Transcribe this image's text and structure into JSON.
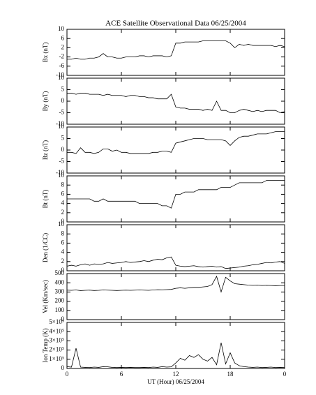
{
  "chart_data": [
    {
      "type": "line",
      "title": "ACE Satellite Observational Data   06/25/2004",
      "ylabel": "Bx (nT)",
      "color": "#000000",
      "xlim": [
        0,
        24
      ],
      "ylim": [
        -10,
        10
      ],
      "yticks": [
        -10,
        -6,
        -2,
        2,
        6,
        10
      ],
      "x": [
        0,
        0.5,
        1,
        1.5,
        2,
        2.5,
        3,
        3.5,
        4,
        4.5,
        5,
        5.5,
        6,
        6.5,
        7,
        7.5,
        8,
        8.5,
        9,
        9.5,
        10,
        10.5,
        11,
        11.5,
        12,
        12.5,
        13,
        13.5,
        14,
        14.5,
        15,
        15.5,
        16,
        16.5,
        17,
        17.5,
        18,
        18.5,
        19,
        19.5,
        20,
        20.5,
        21,
        21.5,
        22,
        22.5,
        23,
        23.5,
        24
      ],
      "values": [
        -3,
        -3,
        -2.5,
        -3,
        -3,
        -2.5,
        -2.5,
        -2,
        -0.5,
        -2,
        -2,
        -2.5,
        -2.5,
        -2,
        -2,
        -2,
        -1.5,
        -1.5,
        -2,
        -1.5,
        -1.5,
        -1.5,
        -2,
        -1.5,
        4,
        4,
        4.5,
        4.5,
        4.5,
        4.5,
        5,
        5,
        5,
        5,
        5,
        5,
        4,
        2,
        3.5,
        3,
        3.5,
        3,
        3,
        3,
        3,
        3,
        2.5,
        3,
        2.5
      ]
    },
    {
      "type": "line",
      "ylabel": "By (nT)",
      "color": "#000000",
      "xlim": [
        0,
        24
      ],
      "ylim": [
        -10,
        10
      ],
      "yticks": [
        -10,
        -5,
        0,
        5,
        10
      ],
      "x": [
        0,
        0.5,
        1,
        1.5,
        2,
        2.5,
        3,
        3.5,
        4,
        4.5,
        5,
        5.5,
        6,
        6.5,
        7,
        7.5,
        8,
        8.5,
        9,
        9.5,
        10,
        10.5,
        11,
        11.5,
        12,
        12.5,
        13,
        13.5,
        14,
        14.5,
        15,
        15.5,
        16,
        16.5,
        17,
        17.5,
        18,
        18.5,
        19,
        19.5,
        20,
        20.5,
        21,
        21.5,
        22,
        22.5,
        23,
        23.5,
        24
      ],
      "values": [
        3.5,
        3.5,
        3,
        3.5,
        3.5,
        3,
        3,
        3,
        2.5,
        3,
        2.5,
        2.5,
        2.5,
        2,
        2.5,
        2.5,
        2,
        2,
        1.5,
        1.5,
        1,
        1,
        1,
        3,
        -2.5,
        -3,
        -3,
        -3.5,
        -3.5,
        -3.5,
        -4,
        -3.5,
        -4,
        0,
        -4,
        -4,
        -5,
        -5,
        -4,
        -3.5,
        -4,
        -4.5,
        -4,
        -4.5,
        -4,
        -4,
        -4,
        -5,
        -4.5
      ]
    },
    {
      "type": "line",
      "ylabel": "Bz (nT)",
      "color": "#000000",
      "xlim": [
        0,
        24
      ],
      "ylim": [
        -10,
        10
      ],
      "yticks": [
        -10,
        -5,
        0,
        5,
        10
      ],
      "x": [
        0,
        0.5,
        1,
        1.5,
        2,
        2.5,
        3,
        3.5,
        4,
        4.5,
        5,
        5.5,
        6,
        6.5,
        7,
        7.5,
        8,
        8.5,
        9,
        9.5,
        10,
        10.5,
        11,
        11.5,
        12,
        12.5,
        13,
        13.5,
        14,
        14.5,
        15,
        15.5,
        16,
        16.5,
        17,
        17.5,
        18,
        18.5,
        19,
        19.5,
        20,
        20.5,
        21,
        21.5,
        22,
        22.5,
        23,
        23.5,
        24
      ],
      "values": [
        -1,
        -1,
        -1.5,
        1,
        -1,
        -1,
        -1.5,
        -1,
        0.5,
        0.5,
        -0.5,
        0,
        -1,
        -1,
        -1.5,
        -1.5,
        -1.5,
        -1.5,
        -1.5,
        -1,
        -1,
        -0.5,
        -0.5,
        -1,
        3,
        3.5,
        4,
        4.5,
        5,
        5,
        5,
        4.5,
        4.5,
        4.5,
        4.5,
        4,
        2,
        4,
        5.5,
        6,
        6,
        6.5,
        7,
        7,
        7,
        7.5,
        8,
        8,
        8
      ]
    },
    {
      "type": "line",
      "ylabel": "Bt (nT)",
      "color": "#000000",
      "xlim": [
        0,
        24
      ],
      "ylim": [
        0,
        10
      ],
      "yticks": [
        0,
        2,
        4,
        6,
        8,
        10
      ],
      "x": [
        0,
        0.5,
        1,
        1.5,
        2,
        2.5,
        3,
        3.5,
        4,
        4.5,
        5,
        5.5,
        6,
        6.5,
        7,
        7.5,
        8,
        8.5,
        9,
        9.5,
        10,
        10.5,
        11,
        11.5,
        12,
        12.5,
        13,
        13.5,
        14,
        14.5,
        15,
        15.5,
        16,
        16.5,
        17,
        17.5,
        18,
        18.5,
        19,
        19.5,
        20,
        20.5,
        21,
        21.5,
        22,
        22.5,
        23,
        23.5,
        24
      ],
      "values": [
        5,
        5,
        5,
        5,
        5,
        5,
        4.5,
        4.5,
        5,
        4.5,
        4.5,
        4.5,
        4.5,
        4.5,
        4.5,
        4.5,
        4,
        4,
        4,
        4,
        4,
        3.5,
        3.5,
        3,
        6,
        6,
        6.5,
        6.5,
        6.5,
        7,
        7,
        7,
        7,
        7,
        7.5,
        7.5,
        7.5,
        8,
        8.5,
        8.5,
        8.5,
        8.5,
        8.5,
        8.5,
        9,
        9,
        9,
        9,
        9
      ]
    },
    {
      "type": "line",
      "ylabel": "Den (1/CC)",
      "color": "#000000",
      "xlim": [
        0,
        24
      ],
      "ylim": [
        0,
        10
      ],
      "yticks": [
        0,
        2,
        4,
        6,
        8,
        10
      ],
      "x": [
        0,
        0.5,
        1,
        1.5,
        2,
        2.5,
        3,
        3.5,
        4,
        4.5,
        5,
        5.5,
        6,
        6.5,
        7,
        7.5,
        8,
        8.5,
        9,
        9.5,
        10,
        10.5,
        11,
        11.5,
        12,
        12.5,
        13,
        13.5,
        14,
        14.5,
        15,
        15.5,
        16,
        16.5,
        17,
        17.5,
        18,
        18.5,
        19,
        19.5,
        20,
        20.5,
        21,
        21.5,
        22,
        22.5,
        23,
        23.5,
        24
      ],
      "values": [
        1,
        1.2,
        1,
        1.3,
        1.5,
        1.2,
        1.5,
        1.4,
        1.5,
        1.8,
        1.6,
        1.7,
        1.8,
        2,
        1.8,
        1.9,
        2,
        2.2,
        2,
        2.3,
        2.5,
        2.4,
        2.8,
        3,
        1.2,
        1,
        0.9,
        1,
        1.1,
        0.9,
        0.8,
        0.9,
        1,
        0.8,
        0.9,
        0.5,
        0.6,
        0.7,
        0.8,
        1,
        1.1,
        1.3,
        1.4,
        1.6,
        1.8,
        1.7,
        1.9,
        2,
        1.6
      ]
    },
    {
      "type": "line",
      "ylabel": "Vel (Km/sec)",
      "color": "#000000",
      "xlim": [
        0,
        24
      ],
      "ylim": [
        0,
        500
      ],
      "yticks": [
        0,
        100,
        200,
        300,
        400,
        500
      ],
      "x": [
        0,
        0.5,
        1,
        1.5,
        2,
        2.5,
        3,
        3.5,
        4,
        4.5,
        5,
        5.5,
        6,
        6.5,
        7,
        7.5,
        8,
        8.5,
        9,
        9.5,
        10,
        10.5,
        11,
        11.5,
        12,
        12.5,
        13,
        13.5,
        14,
        14.5,
        15,
        15.5,
        16,
        16.5,
        17,
        17.5,
        18,
        18.5,
        19,
        19.5,
        20,
        20.5,
        21,
        21.5,
        22,
        22.5,
        23,
        23.5,
        24
      ],
      "values": [
        320,
        318,
        322,
        315,
        318,
        320,
        316,
        318,
        322,
        320,
        318,
        316,
        318,
        320,
        318,
        320,
        322,
        320,
        318,
        322,
        325,
        324,
        326,
        328,
        340,
        345,
        340,
        345,
        350,
        350,
        355,
        360,
        380,
        470,
        300,
        460,
        420,
        390,
        385,
        380,
        375,
        372,
        374,
        370,
        372,
        370,
        368,
        370,
        370
      ]
    },
    {
      "type": "line",
      "ylabel": "Ion Temp (K)",
      "xlabel": "UT (Hour)  06/25/2004",
      "color": "#000000",
      "xlim": [
        0,
        24
      ],
      "xticks": [
        0,
        6,
        12,
        18,
        {
          "value": 24,
          "label": "0"
        }
      ],
      "ylim": [
        0,
        500000
      ],
      "yticks": [
        0,
        {
          "value": 100000,
          "label": "1×10⁵"
        },
        {
          "value": 200000,
          "label": "2×10⁵"
        },
        {
          "value": 300000,
          "label": "3×10⁵"
        },
        {
          "value": 400000,
          "label": "4×10⁵"
        },
        {
          "value": 500000,
          "label": "5×10⁵"
        }
      ],
      "x": [
        0,
        0.5,
        1,
        1.5,
        2,
        2.5,
        3,
        3.5,
        4,
        4.5,
        5,
        5.5,
        6,
        6.5,
        7,
        7.5,
        8,
        8.5,
        9,
        9.5,
        10,
        10.5,
        11,
        11.5,
        12,
        12.5,
        13,
        13.5,
        14,
        14.5,
        15,
        15.5,
        16,
        16.5,
        17,
        17.5,
        18,
        18.5,
        19,
        19.5,
        20,
        20.5,
        21,
        21.5,
        22,
        22.5,
        23,
        23.5,
        24
      ],
      "values": [
        20000,
        15000,
        220000,
        15000,
        12000,
        10000,
        15000,
        12000,
        20000,
        18000,
        12000,
        10000,
        12000,
        10000,
        12000,
        10000,
        10000,
        12000,
        10000,
        15000,
        12000,
        20000,
        15000,
        18000,
        60000,
        110000,
        90000,
        140000,
        120000,
        150000,
        100000,
        80000,
        120000,
        40000,
        280000,
        50000,
        170000,
        60000,
        30000,
        20000,
        15000,
        12000,
        15000,
        10000,
        12000,
        15000,
        10000,
        12000,
        10000
      ]
    }
  ]
}
